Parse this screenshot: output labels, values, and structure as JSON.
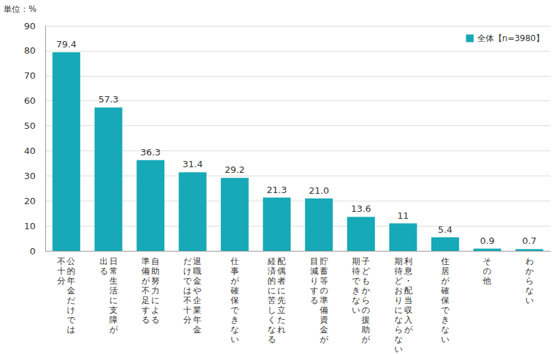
{
  "chart_data": {
    "type": "bar",
    "ylabel": "単位：%",
    "categories": [
      "公的年金だけでは\n不十分",
      "日常生活に支障が\n出る",
      "自助努力による\n準備が不足する",
      "退職金や企業年金\nだけでは不十分",
      "仕事が確保できない",
      "配偶者に先立たれ\n経済的に苦しくなる",
      "貯蓄等の準備資金が\n目減りする",
      "子どもからの援助が\n期待できない",
      "利息・配当収入が\n期待どおりにならない",
      "住居が確保できない",
      "その他",
      "わからない"
    ],
    "series": [
      {
        "name": "全体【n=3980】",
        "color": "#17a9b7",
        "values": [
          79.4,
          57.3,
          36.3,
          31.4,
          29.2,
          21.3,
          21.0,
          13.6,
          11,
          5.4,
          0.9,
          0.7
        ],
        "value_labels": [
          "79.4",
          "57.3",
          "36.3",
          "31.4",
          "29.2",
          "21.3",
          "21.0",
          "13.6",
          "11",
          "5.4",
          "0.9",
          "0.7"
        ]
      }
    ],
    "ylim": [
      0,
      90
    ],
    "yticks": [
      0,
      10,
      20,
      30,
      40,
      50,
      60,
      70,
      80,
      90
    ],
    "grid": true,
    "legend": "upper right",
    "data_labels": true
  }
}
